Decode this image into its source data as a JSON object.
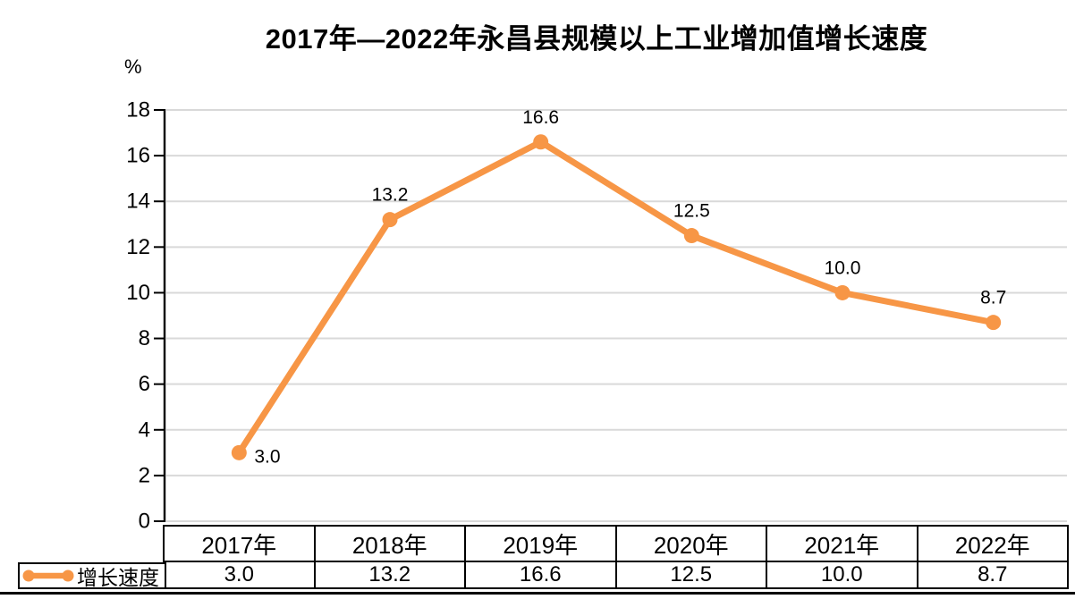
{
  "title": "2017年—2022年永昌县规模以上工业增加值增长速度",
  "y_axis_unit": "%",
  "legend": {
    "label": "增长速度"
  },
  "chart_data": {
    "type": "line",
    "title": "2017年—2022年永昌县规模以上工业增加值增长速度",
    "categories": [
      "2017年",
      "2018年",
      "2019年",
      "2020年",
      "2021年",
      "2022年"
    ],
    "series": [
      {
        "name": "增长速度",
        "values": [
          3.0,
          13.2,
          16.6,
          12.5,
          10.0,
          8.7
        ]
      }
    ],
    "labels": [
      "3.0",
      "13.2",
      "16.6",
      "12.5",
      "10.0",
      "8.7"
    ],
    "label_positions": [
      "right",
      "above",
      "above",
      "above",
      "above",
      "above"
    ],
    "ylabel": "%",
    "ylim": [
      0,
      18
    ],
    "yticks": [
      0,
      2,
      4,
      6,
      8,
      10,
      12,
      14,
      16,
      18
    ],
    "grid": true,
    "legend_position": "bottom-left",
    "data_table_shown": true,
    "line_color": "#F79646",
    "marker": "circle",
    "gridline_color": "#D9D9D9",
    "axis_color": "#000000",
    "label_color": "#000000"
  }
}
